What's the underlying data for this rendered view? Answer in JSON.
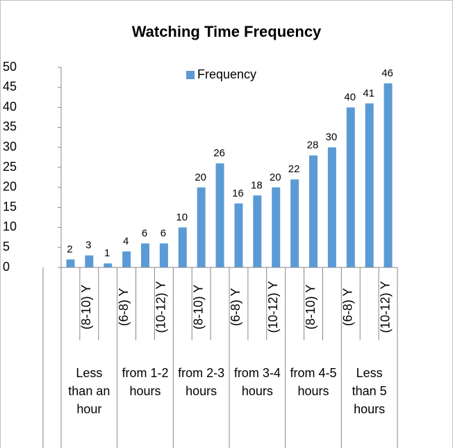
{
  "chart_data": {
    "type": "bar",
    "title": "Watching Time Frequency",
    "categories": [
      null,
      "(8-10) Y",
      null,
      "(6-8) Y",
      null,
      "(10-12) Y",
      null,
      "(8-10) Y",
      null,
      "(6-8) Y",
      null,
      "(10-12) Y",
      null,
      "(8-10) Y",
      null,
      "(6-8) Y",
      null,
      "(10-12) Y"
    ],
    "groups": [
      "Less than an hour",
      "from 1-2 hours",
      "from 2-3 hours",
      "from 3-4 hours",
      "from 4-5 hours",
      "Less than 5 hours"
    ],
    "series": [
      {
        "name": "Frequency",
        "color": "#5b9bd5",
        "values": [
          2,
          3,
          1,
          4,
          6,
          6,
          10,
          20,
          26,
          16,
          18,
          20,
          22,
          28,
          30,
          40,
          41,
          46
        ]
      }
    ],
    "ylim": [
      0,
      50
    ],
    "yticks": [
      0,
      5,
      10,
      15,
      20,
      25,
      30,
      35,
      40,
      45,
      50
    ],
    "grid": false,
    "legend": "top"
  }
}
